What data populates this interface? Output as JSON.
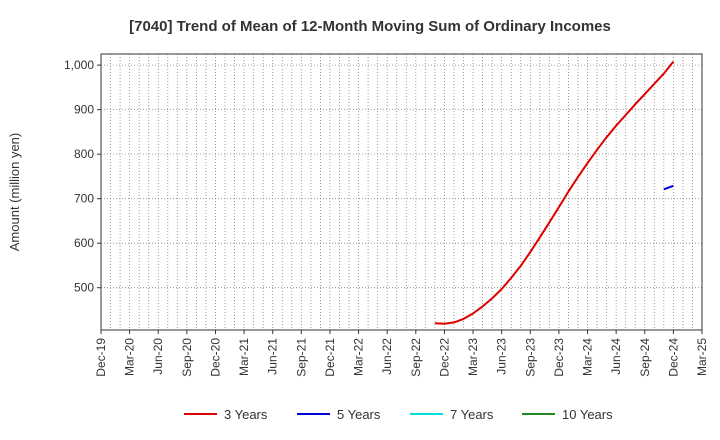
{
  "chart_data": {
    "type": "line",
    "title": "[7040]  Trend of Mean of 12-Month Moving Sum of Ordinary Incomes",
    "ylabel": "Amount (million yen)",
    "xlabel": "",
    "ylim": [
      405,
      1025
    ],
    "yticks": [
      500,
      600,
      700,
      800,
      900,
      1000
    ],
    "ytick_labels": [
      "500",
      "600",
      "700",
      "800",
      "900",
      "1,000"
    ],
    "x_start": "Dec-19",
    "x_end": "Mar-25",
    "xtick_labels": [
      "Dec-19",
      "Mar-20",
      "Jun-20",
      "Sep-20",
      "Dec-20",
      "Mar-21",
      "Jun-21",
      "Sep-21",
      "Dec-21",
      "Mar-22",
      "Jun-22",
      "Sep-22",
      "Dec-22",
      "Mar-23",
      "Jun-23",
      "Sep-23",
      "Dec-23",
      "Mar-24",
      "Jun-24",
      "Sep-24",
      "Dec-24",
      "Mar-25"
    ],
    "grid": true,
    "legend_position": "bottom",
    "series": [
      {
        "name": "3 Years",
        "color": "#dd0000",
        "x": [
          "Nov-22",
          "Dec-22",
          "Jan-23",
          "Feb-23",
          "Mar-23",
          "Apr-23",
          "May-23",
          "Jun-23",
          "Jul-23",
          "Aug-23",
          "Sep-23",
          "Oct-23",
          "Nov-23",
          "Dec-23",
          "Jan-24",
          "Feb-24",
          "Mar-24",
          "Apr-24",
          "May-24",
          "Jun-24",
          "Jul-24",
          "Aug-24",
          "Sep-24",
          "Oct-24",
          "Nov-24",
          "Dec-24"
        ],
        "values": [
          420,
          419,
          422,
          430,
          442,
          458,
          476,
          497,
          522,
          549,
          580,
          613,
          647,
          681,
          716,
          749,
          780,
          810,
          838,
          864,
          888,
          912,
          935,
          958,
          981,
          1008
        ]
      },
      {
        "name": "5 Years",
        "color": "#0000dd",
        "x": [
          "Nov-24",
          "Dec-24"
        ],
        "values": [
          721,
          729
        ]
      },
      {
        "name": "7 Years",
        "color": "#00dddd",
        "x": [],
        "values": []
      },
      {
        "name": "10 Years",
        "color": "#228822",
        "x": [],
        "values": []
      }
    ]
  }
}
